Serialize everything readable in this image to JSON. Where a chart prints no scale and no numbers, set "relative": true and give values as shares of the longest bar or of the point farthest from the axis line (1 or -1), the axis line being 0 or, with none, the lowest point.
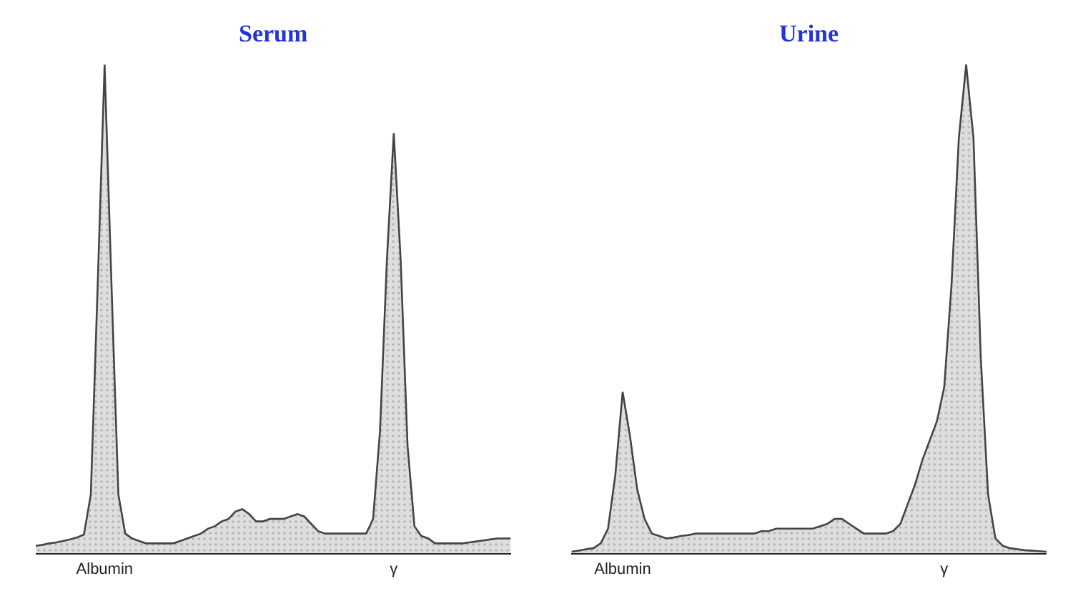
{
  "chart_data": [
    {
      "type": "area",
      "title": "Serum",
      "relative": true,
      "tick_labels": "x",
      "categories": [
        null,
        null,
        null,
        null,
        null,
        null,
        null,
        null,
        null,
        null,
        "Albumin",
        null,
        null,
        null,
        null,
        null,
        null,
        null,
        null,
        null,
        null,
        null,
        null,
        null,
        null,
        null,
        null,
        null,
        null,
        null,
        null,
        null,
        null,
        null,
        null,
        null,
        null,
        null,
        null,
        null,
        null,
        null,
        null,
        null,
        null,
        null,
        null,
        null,
        null,
        null,
        null,
        null,
        "γ",
        null,
        null,
        null,
        null,
        null,
        null,
        null,
        null,
        null,
        null,
        null,
        null,
        null,
        null,
        null,
        null,
        null
      ],
      "series": [
        {
          "color": "#444444",
          "values": [
            0.015,
            0.017,
            0.02,
            0.022,
            0.025,
            0.028,
            0.032,
            0.038,
            0.12,
            0.55,
            1,
            0.55,
            0.12,
            0.04,
            0.03,
            0.025,
            0.02,
            0.02,
            0.02,
            0.02,
            0.02,
            0.025,
            0.03,
            0.035,
            0.04,
            0.05,
            0.055,
            0.065,
            0.07,
            0.085,
            0.09,
            0.08,
            0.065,
            0.065,
            0.07,
            0.07,
            0.07,
            0.075,
            0.08,
            0.075,
            0.06,
            0.045,
            0.04,
            0.04,
            0.04,
            0.04,
            0.04,
            0.04,
            0.04,
            0.07,
            0.25,
            0.6,
            0.86,
            0.6,
            0.22,
            0.055,
            0.035,
            0.03,
            0.02,
            0.02,
            0.02,
            0.02,
            0.02,
            0.022,
            0.024,
            0.026,
            0.028,
            0.03,
            0.03,
            0.03
          ]
        }
      ]
    },
    {
      "type": "area",
      "title": "Urine",
      "relative": true,
      "tick_labels": "x",
      "categories": [
        null,
        null,
        null,
        null,
        null,
        null,
        null,
        "Albumin",
        null,
        null,
        null,
        null,
        null,
        null,
        null,
        null,
        null,
        null,
        null,
        null,
        null,
        null,
        null,
        null,
        null,
        null,
        null,
        null,
        null,
        null,
        null,
        null,
        null,
        null,
        null,
        null,
        null,
        null,
        null,
        null,
        null,
        null,
        null,
        null,
        null,
        null,
        null,
        null,
        null,
        null,
        null,
        "γ",
        null,
        null,
        null,
        null,
        null,
        null,
        null,
        null,
        null,
        null,
        null,
        null,
        null,
        null
      ],
      "series": [
        {
          "color": "#444444",
          "values": [
            0.003,
            0.005,
            0.008,
            0.01,
            0.02,
            0.05,
            0.16,
            0.33,
            0.24,
            0.13,
            0.07,
            0.04,
            0.035,
            0.03,
            0.032,
            0.035,
            0.037,
            0.04,
            0.04,
            0.04,
            0.04,
            0.04,
            0.04,
            0.04,
            0.04,
            0.04,
            0.045,
            0.045,
            0.05,
            0.05,
            0.05,
            0.05,
            0.05,
            0.05,
            0.055,
            0.06,
            0.07,
            0.07,
            0.06,
            0.05,
            0.04,
            0.04,
            0.04,
            0.04,
            0.045,
            0.06,
            0.1,
            0.14,
            0.19,
            0.23,
            0.27,
            0.34,
            0.55,
            0.85,
            1,
            0.85,
            0.4,
            0.12,
            0.03,
            0.015,
            0.01,
            0.008,
            0.006,
            0.005,
            0.004,
            0.003
          ]
        }
      ]
    }
  ]
}
